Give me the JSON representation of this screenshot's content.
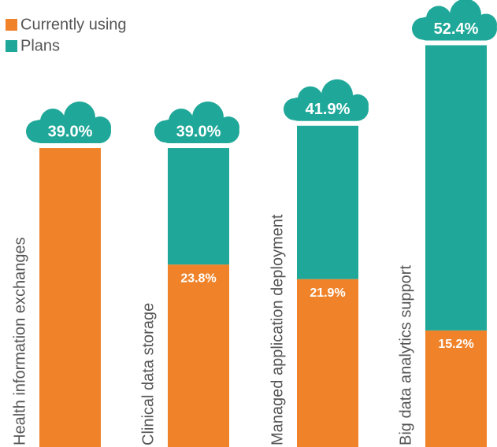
{
  "chart_data": {
    "type": "stacked_bar",
    "categories": [
      "Health information exchanges",
      "Clinical data storage",
      "Managed application deployment",
      "Big data analytics support"
    ],
    "series": [
      {
        "name": "Currently using",
        "color": "#f0832a",
        "values": [
          39.0,
          23.8,
          21.9,
          15.2
        ],
        "value_labels": [
          null,
          "23.8%",
          "21.9%",
          "15.2%"
        ]
      },
      {
        "name": "Plans",
        "color": "#1fa899",
        "values": [
          0,
          15.2,
          20.0,
          37.2
        ]
      }
    ],
    "totals": [
      39.0,
      39.0,
      41.9,
      52.4
    ],
    "total_labels": [
      "39.0%",
      "39.0%",
      "41.9%",
      "52.4%"
    ],
    "ylim": [
      0,
      58.3
    ],
    "legend": "top-left"
  }
}
